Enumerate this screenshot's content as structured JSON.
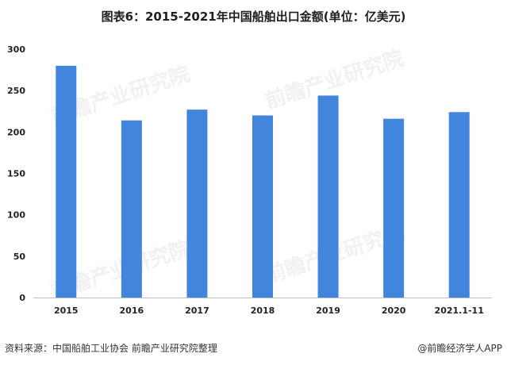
{
  "title": "图表6：2015-2021年中国船舶出口金额(单位：亿美元)",
  "footer": {
    "source": "资料来源：中国船舶工业协会 前瞻产业研究院整理",
    "brand": "@前瞻经济学人APP"
  },
  "watermark": "前瞻产业研究院",
  "colors": {
    "bar": "#4185DD",
    "axis": "#BFBFBF",
    "text": "#222222"
  },
  "chart_data": {
    "type": "bar",
    "title": "图表6：2015-2021年中国船舶出口金额(单位：亿美元)",
    "categories": [
      "2015",
      "2016",
      "2017",
      "2018",
      "2019",
      "2020",
      "2021.1-11"
    ],
    "values": [
      280,
      214,
      227,
      220,
      244,
      216,
      224
    ],
    "ylim": [
      0,
      300
    ],
    "yticks": [
      0,
      50,
      100,
      150,
      200,
      250,
      300
    ],
    "xlabel": "",
    "ylabel": "",
    "grid": false,
    "legend": "none"
  }
}
